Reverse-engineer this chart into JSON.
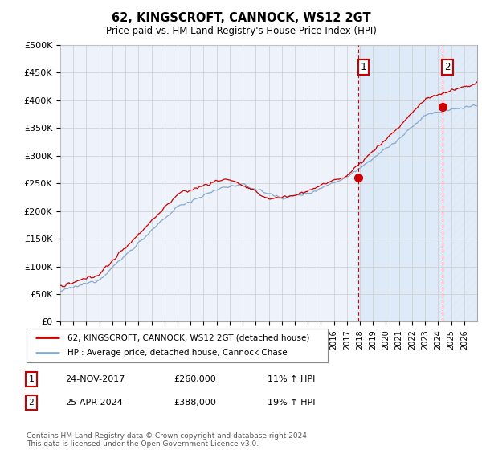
{
  "title": "62, KINGSCROFT, CANNOCK, WS12 2GT",
  "subtitle": "Price paid vs. HM Land Registry's House Price Index (HPI)",
  "ylabel_ticks": [
    "£0",
    "£50K",
    "£100K",
    "£150K",
    "£200K",
    "£250K",
    "£300K",
    "£350K",
    "£400K",
    "£450K",
    "£500K"
  ],
  "ytick_values": [
    0,
    50000,
    100000,
    150000,
    200000,
    250000,
    300000,
    350000,
    400000,
    450000,
    500000
  ],
  "ylim": [
    0,
    500000
  ],
  "xstart_year": 1995,
  "xend_year": 2027,
  "red_line_color": "#cc0000",
  "blue_line_color": "#88aacc",
  "bg_color": "#ffffff",
  "plot_bg_color": "#eef2fb",
  "grid_color": "#cccccc",
  "sale1_date_num": 2017.9,
  "sale1_price": 260000,
  "sale1_label": "1",
  "sale1_date_str": "24-NOV-2017",
  "sale1_pct": "11%",
  "sale2_date_num": 2024.32,
  "sale2_price": 388000,
  "sale2_label": "2",
  "sale2_date_str": "25-APR-2024",
  "sale2_pct": "19%",
  "shaded_region_color": "#d8e8f8",
  "legend_label1": "62, KINGSCROFT, CANNOCK, WS12 2GT (detached house)",
  "legend_label2": "HPI: Average price, detached house, Cannock Chase",
  "footer_text": "Contains HM Land Registry data © Crown copyright and database right 2024.\nThis data is licensed under the Open Government Licence v3.0."
}
